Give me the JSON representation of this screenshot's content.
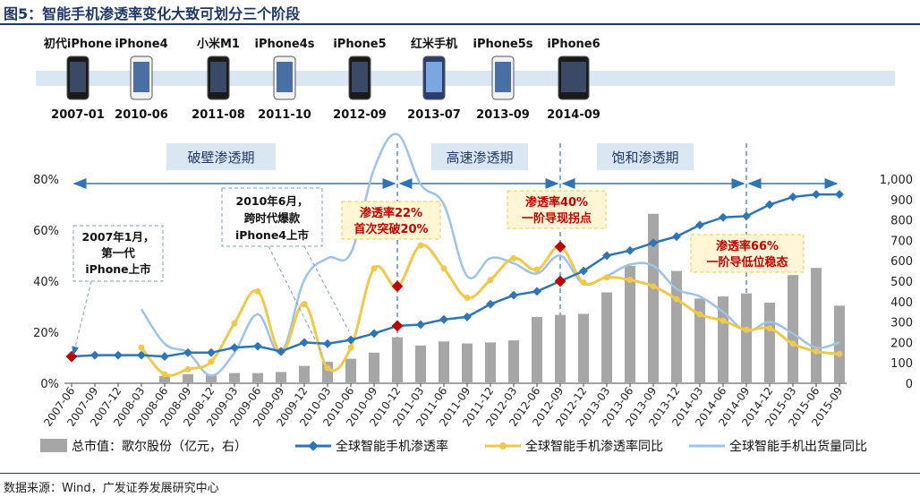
{
  "figure_title": "图5：智能手机渗透率变化大致可划分三个阶段",
  "source": "数据来源：Wind，广发证券发展研究中心",
  "phones": [
    {
      "name": "初代iPhone",
      "date": "2007-01",
      "style": "black"
    },
    {
      "name": "iPhone4",
      "date": "2010-06",
      "style": "white"
    },
    {
      "name": "小米M1",
      "date": "2011-08",
      "style": "black"
    },
    {
      "name": "iPhone4s",
      "date": "2011-10",
      "style": "white"
    },
    {
      "name": "iPhone5",
      "date": "2012-09",
      "style": "black"
    },
    {
      "name": "红米手机",
      "date": "2013-07",
      "style": "blue"
    },
    {
      "name": "iPhone5s",
      "date": "2013-09",
      "style": "white"
    },
    {
      "name": "iPhone6",
      "date": "2014-09",
      "style": "black"
    }
  ],
  "phases": [
    "破壁渗透期",
    "高速渗透期",
    "饱和渗透期"
  ],
  "annotations": {
    "a1": [
      "2007年1月，",
      "第一代",
      "iPhone上市"
    ],
    "a2": [
      "2010年6月，",
      "跨时代爆款",
      "iPhone4上市"
    ],
    "a3": [
      "渗透率22%",
      "首次突破20%"
    ],
    "a4": [
      "渗透率40%",
      "一阶导现拐点"
    ],
    "a5": [
      "渗透率66%",
      "一阶导低位稳态"
    ]
  },
  "colors": {
    "bar": "#a6a6a6",
    "penetration": "#2e75b6",
    "yoy": "#f0c94b",
    "shipment": "#9dc3e6",
    "highlight": "#c00000",
    "arrow": "#2e75b6",
    "band": "#dae6f2"
  },
  "chart_data": {
    "type": "bar+line",
    "categories": [
      "2007-06",
      "2007-09",
      "2007-12",
      "2008-03",
      "2008-06",
      "2008-09",
      "2008-12",
      "2009-03",
      "2009-06",
      "2009-09",
      "2009-12",
      "2010-03",
      "2010-06",
      "2010-09",
      "2010-12",
      "2011-03",
      "2011-06",
      "2011-09",
      "2011-12",
      "2012-03",
      "2012-06",
      "2012-09",
      "2012-12",
      "2013-03",
      "2013-06",
      "2013-09",
      "2013-12",
      "2014-03",
      "2014-06",
      "2014-09",
      "2014-12",
      "2015-03",
      "2015-06",
      "2015-09"
    ],
    "ylim_left": [
      0,
      0.8
    ],
    "ylim_right": [
      0,
      1000
    ],
    "left_ticks": [
      "0%",
      "20%",
      "40%",
      "60%",
      "80%"
    ],
    "right_ticks": [
      "0",
      "100",
      "200",
      "300",
      "400",
      "500",
      "600",
      "700",
      "800",
      "900",
      "1,000"
    ],
    "series": [
      {
        "name": "总市值：歌尔股份（亿元，右）",
        "type": "bar",
        "axis": "right",
        "values": [
          null,
          null,
          null,
          null,
          35,
          45,
          40,
          50,
          50,
          55,
          85,
          105,
          120,
          150,
          225,
          185,
          205,
          195,
          200,
          210,
          325,
          335,
          340,
          445,
          575,
          830,
          550,
          415,
          425,
          440,
          395,
          530,
          565,
          380
        ]
      },
      {
        "name": "全球智能手机渗透率",
        "type": "line",
        "axis": "left",
        "values": [
          0.105,
          0.11,
          0.11,
          0.11,
          0.105,
          0.12,
          0.12,
          0.14,
          0.145,
          0.125,
          0.16,
          0.155,
          0.17,
          0.195,
          0.225,
          0.23,
          0.25,
          0.26,
          0.31,
          0.345,
          0.36,
          0.4,
          0.44,
          0.5,
          0.52,
          0.55,
          0.575,
          0.62,
          0.65,
          0.655,
          0.7,
          0.73,
          0.74,
          0.74
        ]
      },
      {
        "name": "全球智能手机渗透率同比",
        "type": "line",
        "axis": "left",
        "values": [
          null,
          null,
          null,
          0.14,
          0.035,
          0.055,
          0.085,
          0.235,
          0.36,
          0.12,
          0.31,
          0.06,
          0.14,
          0.45,
          0.38,
          0.54,
          0.45,
          0.335,
          0.405,
          0.49,
          0.445,
          0.535,
          0.395,
          0.415,
          0.405,
          0.38,
          0.33,
          0.27,
          0.245,
          0.21,
          0.215,
          0.155,
          0.125,
          0.115
        ]
      },
      {
        "name": "全球智能手机出货量同比",
        "type": "line",
        "axis": "left",
        "values": [
          null,
          null,
          null,
          0.29,
          0.155,
          0.12,
          0.03,
          0.12,
          0.27,
          0.12,
          0.405,
          0.49,
          0.51,
          0.84,
          1.02,
          0.78,
          0.7,
          0.42,
          0.49,
          0.47,
          0.43,
          0.5,
          0.39,
          0.42,
          0.465,
          0.46,
          0.37,
          0.34,
          0.28,
          0.205,
          0.24,
          0.195,
          0.14,
          0.16
        ]
      }
    ],
    "highlight_points": [
      {
        "series": 1,
        "index": 0
      },
      {
        "series": 1,
        "index": 14
      },
      {
        "series": 1,
        "index": 21
      },
      {
        "series": 2,
        "index": 14
      },
      {
        "series": 2,
        "index": 21
      }
    ],
    "legend_position": "bottom",
    "grid": false
  }
}
